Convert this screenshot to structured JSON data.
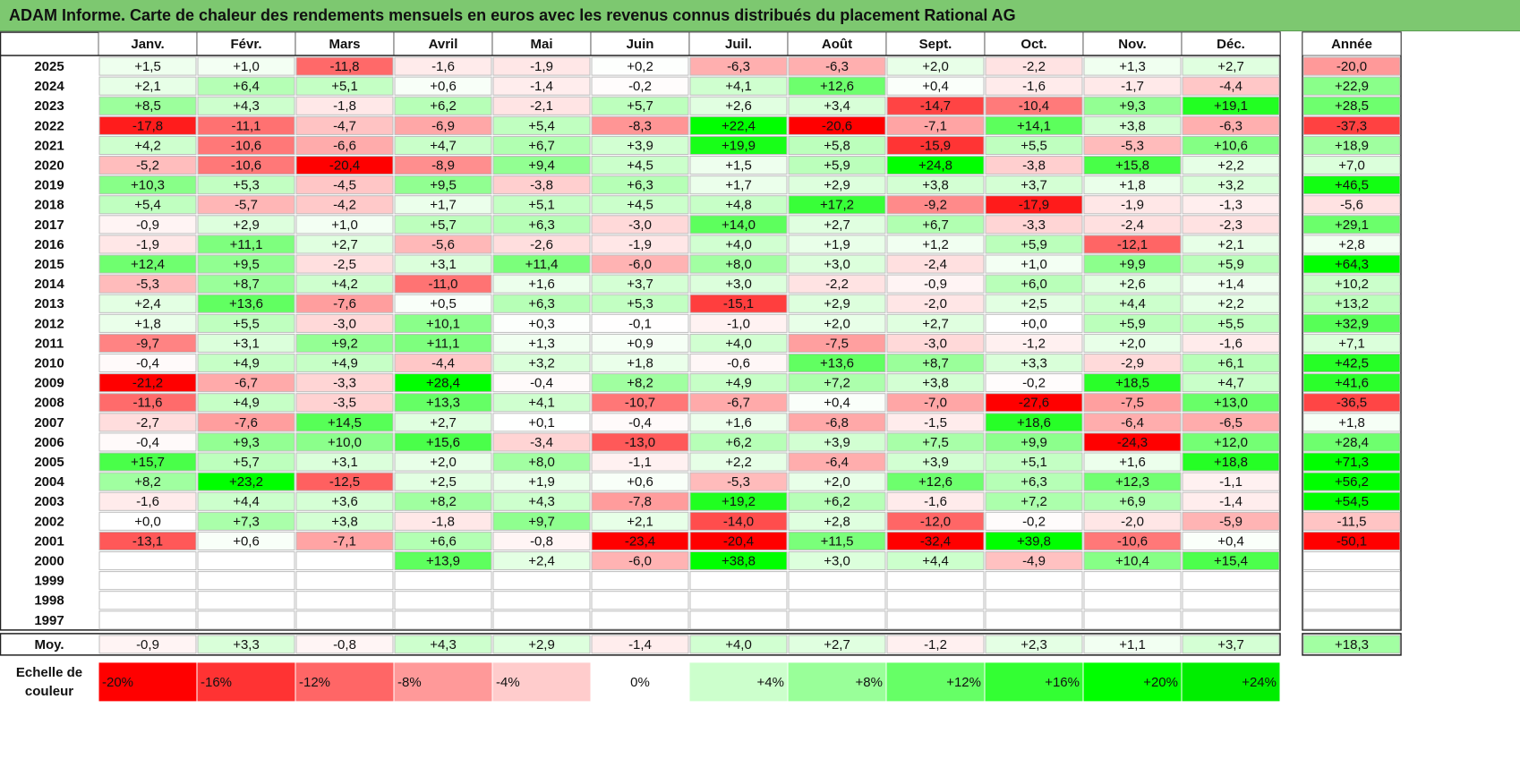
{
  "title": "ADAM Informe. Carte de chaleur des rendements mensuels en euros avec les revenus connus distribués du placement Rational AG",
  "chart_data": {
    "type": "heatmap",
    "title": "ADAM Informe. Carte de chaleur des rendements mensuels en euros avec les revenus connus distribués du placement Rational AG",
    "columns": [
      "Janv.",
      "Févr.",
      "Mars",
      "Avril",
      "Mai",
      "Juin",
      "Juil.",
      "Août",
      "Sept.",
      "Oct.",
      "Nov.",
      "Déc."
    ],
    "year_header": "Année",
    "rows": [
      {
        "year": "2025",
        "values": [
          "+1,5",
          "+1,0",
          "-11,8",
          "-1,6",
          "-1,9",
          "+0,2",
          "-6,3",
          "-6,3",
          "+2,0",
          "-2,2",
          "+1,3",
          "+2,7"
        ],
        "annual": "-20,0"
      },
      {
        "year": "2024",
        "values": [
          "+2,1",
          "+6,4",
          "+5,1",
          "+0,6",
          "-1,4",
          "-0,2",
          "+4,1",
          "+12,6",
          "+0,4",
          "-1,6",
          "-1,7",
          "-4,4"
        ],
        "annual": "+22,9"
      },
      {
        "year": "2023",
        "values": [
          "+8,5",
          "+4,3",
          "-1,8",
          "+6,2",
          "-2,1",
          "+5,7",
          "+2,6",
          "+3,4",
          "-14,7",
          "-10,4",
          "+9,3",
          "+19,1"
        ],
        "annual": "+28,5"
      },
      {
        "year": "2022",
        "values": [
          "-17,8",
          "-11,1",
          "-4,7",
          "-6,9",
          "+5,4",
          "-8,3",
          "+22,4",
          "-20,6",
          "-7,1",
          "+14,1",
          "+3,8",
          "-6,3"
        ],
        "annual": "-37,3"
      },
      {
        "year": "2021",
        "values": [
          "+4,2",
          "-10,6",
          "-6,6",
          "+4,7",
          "+6,7",
          "+3,9",
          "+19,9",
          "+5,8",
          "-15,9",
          "+5,5",
          "-5,3",
          "+10,6"
        ],
        "annual": "+18,9"
      },
      {
        "year": "2020",
        "values": [
          "-5,2",
          "-10,6",
          "-20,4",
          "-8,9",
          "+9,4",
          "+4,5",
          "+1,5",
          "+5,9",
          "+24,8",
          "-3,8",
          "+15,8",
          "+2,2"
        ],
        "annual": "+7,0"
      },
      {
        "year": "2019",
        "values": [
          "+10,3",
          "+5,3",
          "-4,5",
          "+9,5",
          "-3,8",
          "+6,3",
          "+1,7",
          "+2,9",
          "+3,8",
          "+3,7",
          "+1,8",
          "+3,2"
        ],
        "annual": "+46,5"
      },
      {
        "year": "2018",
        "values": [
          "+5,4",
          "-5,7",
          "-4,2",
          "+1,7",
          "+5,1",
          "+4,5",
          "+4,8",
          "+17,2",
          "-9,2",
          "-17,9",
          "-1,9",
          "-1,3"
        ],
        "annual": "-5,6"
      },
      {
        "year": "2017",
        "values": [
          "-0,9",
          "+2,9",
          "+1,0",
          "+5,7",
          "+6,3",
          "-3,0",
          "+14,0",
          "+2,7",
          "+6,7",
          "-3,3",
          "-2,4",
          "-2,3"
        ],
        "annual": "+29,1"
      },
      {
        "year": "2016",
        "values": [
          "-1,9",
          "+11,1",
          "+2,7",
          "-5,6",
          "-2,6",
          "-1,9",
          "+4,0",
          "+1,9",
          "+1,2",
          "+5,9",
          "-12,1",
          "+2,1"
        ],
        "annual": "+2,8"
      },
      {
        "year": "2015",
        "values": [
          "+12,4",
          "+9,5",
          "-2,5",
          "+3,1",
          "+11,4",
          "-6,0",
          "+8,0",
          "+3,0",
          "-2,4",
          "+1,0",
          "+9,9",
          "+5,9"
        ],
        "annual": "+64,3"
      },
      {
        "year": "2014",
        "values": [
          "-5,3",
          "+8,7",
          "+4,2",
          "-11,0",
          "+1,6",
          "+3,7",
          "+3,0",
          "-2,2",
          "-0,9",
          "+6,0",
          "+2,6",
          "+1,4"
        ],
        "annual": "+10,2"
      },
      {
        "year": "2013",
        "values": [
          "+2,4",
          "+13,6",
          "-7,6",
          "+0,5",
          "+6,3",
          "+5,3",
          "-15,1",
          "+2,9",
          "-2,0",
          "+2,5",
          "+4,4",
          "+2,2"
        ],
        "annual": "+13,2"
      },
      {
        "year": "2012",
        "values": [
          "+1,8",
          "+5,5",
          "-3,0",
          "+10,1",
          "+0,3",
          "-0,1",
          "-1,0",
          "+2,0",
          "+2,7",
          "+0,0",
          "+5,9",
          "+5,5"
        ],
        "annual": "+32,9"
      },
      {
        "year": "2011",
        "values": [
          "-9,7",
          "+3,1",
          "+9,2",
          "+11,1",
          "+1,3",
          "+0,9",
          "+4,0",
          "-7,5",
          "-3,0",
          "-1,2",
          "+2,0",
          "-1,6"
        ],
        "annual": "+7,1"
      },
      {
        "year": "2010",
        "values": [
          "-0,4",
          "+4,9",
          "+4,9",
          "-4,4",
          "+3,2",
          "+1,8",
          "-0,6",
          "+13,6",
          "+8,7",
          "+3,3",
          "-2,9",
          "+6,1"
        ],
        "annual": "+42,5"
      },
      {
        "year": "2009",
        "values": [
          "-21,2",
          "-6,7",
          "-3,3",
          "+28,4",
          "-0,4",
          "+8,2",
          "+4,9",
          "+7,2",
          "+3,8",
          "-0,2",
          "+18,5",
          "+4,7"
        ],
        "annual": "+41,6"
      },
      {
        "year": "2008",
        "values": [
          "-11,6",
          "+4,9",
          "-3,5",
          "+13,3",
          "+4,1",
          "-10,7",
          "-6,7",
          "+0,4",
          "-7,0",
          "-27,6",
          "-7,5",
          "+13,0"
        ],
        "annual": "-36,5"
      },
      {
        "year": "2007",
        "values": [
          "-2,7",
          "-7,6",
          "+14,5",
          "+2,7",
          "+0,1",
          "-0,4",
          "+1,6",
          "-6,8",
          "-1,5",
          "+18,6",
          "-6,4",
          "-6,5"
        ],
        "annual": "+1,8"
      },
      {
        "year": "2006",
        "values": [
          "-0,4",
          "+9,3",
          "+10,0",
          "+15,6",
          "-3,4",
          "-13,0",
          "+6,2",
          "+3,9",
          "+7,5",
          "+9,9",
          "-24,3",
          "+12,0"
        ],
        "annual": "+28,4"
      },
      {
        "year": "2005",
        "values": [
          "+15,7",
          "+5,7",
          "+3,1",
          "+2,0",
          "+8,0",
          "-1,1",
          "+2,2",
          "-6,4",
          "+3,9",
          "+5,1",
          "+1,6",
          "+18,8"
        ],
        "annual": "+71,3"
      },
      {
        "year": "2004",
        "values": [
          "+8,2",
          "+23,2",
          "-12,5",
          "+2,5",
          "+1,9",
          "+0,6",
          "-5,3",
          "+2,0",
          "+12,6",
          "+6,3",
          "+12,3",
          "-1,1"
        ],
        "annual": "+56,2"
      },
      {
        "year": "2003",
        "values": [
          "-1,6",
          "+4,4",
          "+3,6",
          "+8,2",
          "+4,3",
          "-7,8",
          "+19,2",
          "+6,2",
          "-1,6",
          "+7,2",
          "+6,9",
          "-1,4"
        ],
        "annual": "+54,5"
      },
      {
        "year": "2002",
        "values": [
          "+0,0",
          "+7,3",
          "+3,8",
          "-1,8",
          "+9,7",
          "+2,1",
          "-14,0",
          "+2,8",
          "-12,0",
          "-0,2",
          "-2,0",
          "-5,9"
        ],
        "annual": "-11,5"
      },
      {
        "year": "2001",
        "values": [
          "-13,1",
          "+0,6",
          "-7,1",
          "+6,6",
          "-0,8",
          "-23,4",
          "-20,4",
          "+11,5",
          "-32,4",
          "+39,8",
          "-10,6",
          "+0,4"
        ],
        "annual": "-50,1"
      },
      {
        "year": "2000",
        "values": [
          "",
          "",
          "",
          "+13,9",
          "+2,4",
          "-6,0",
          "+38,8",
          "+3,0",
          "+4,4",
          "-4,9",
          "+10,4",
          "+15,4"
        ],
        "annual": ""
      },
      {
        "year": "1999",
        "values": [
          "",
          "",
          "",
          "",
          "",
          "",
          "",
          "",
          "",
          "",
          "",
          ""
        ],
        "annual": ""
      },
      {
        "year": "1998",
        "values": [
          "",
          "",
          "",
          "",
          "",
          "",
          "",
          "",
          "",
          "",
          "",
          ""
        ],
        "annual": ""
      },
      {
        "year": "1997",
        "values": [
          "",
          "",
          "",
          "",
          "",
          "",
          "",
          "",
          "",
          "",
          "",
          ""
        ],
        "annual": ""
      }
    ],
    "average": {
      "label": "Moy.",
      "values": [
        "-0,9",
        "+3,3",
        "-0,8",
        "+4,3",
        "+2,9",
        "-1,4",
        "+4,0",
        "+2,7",
        "-1,2",
        "+2,3",
        "+1,1",
        "+3,7"
      ],
      "annual": "+18,3"
    },
    "color_scale": {
      "label_line1": "Echelle de",
      "label_line2": "couleur",
      "stops": [
        {
          "label": "-20%",
          "value": -20,
          "color": "#ff0000"
        },
        {
          "label": "-16%",
          "value": -16,
          "color": "#ff3333"
        },
        {
          "label": "-12%",
          "value": -12,
          "color": "#ff6666"
        },
        {
          "label": "-8%",
          "value": -8,
          "color": "#ff9999"
        },
        {
          "label": "-4%",
          "value": -4,
          "color": "#ffcccc"
        },
        {
          "label": "0%",
          "value": 0,
          "color": "#ffffff"
        },
        {
          "label": "+4%",
          "value": 4,
          "color": "#ccffcc"
        },
        {
          "label": "+8%",
          "value": 8,
          "color": "#99ff99"
        },
        {
          "label": "+12%",
          "value": 12,
          "color": "#66ff66"
        },
        {
          "label": "+16%",
          "value": 16,
          "color": "#33ff33"
        },
        {
          "label": "+20%",
          "value": 20,
          "color": "#00ff00"
        },
        {
          "label": "+24%",
          "value": 24,
          "color": "#00ee00"
        }
      ]
    },
    "annual_color_scale": {
      "neg_full": -50,
      "pos_full": 50
    }
  }
}
